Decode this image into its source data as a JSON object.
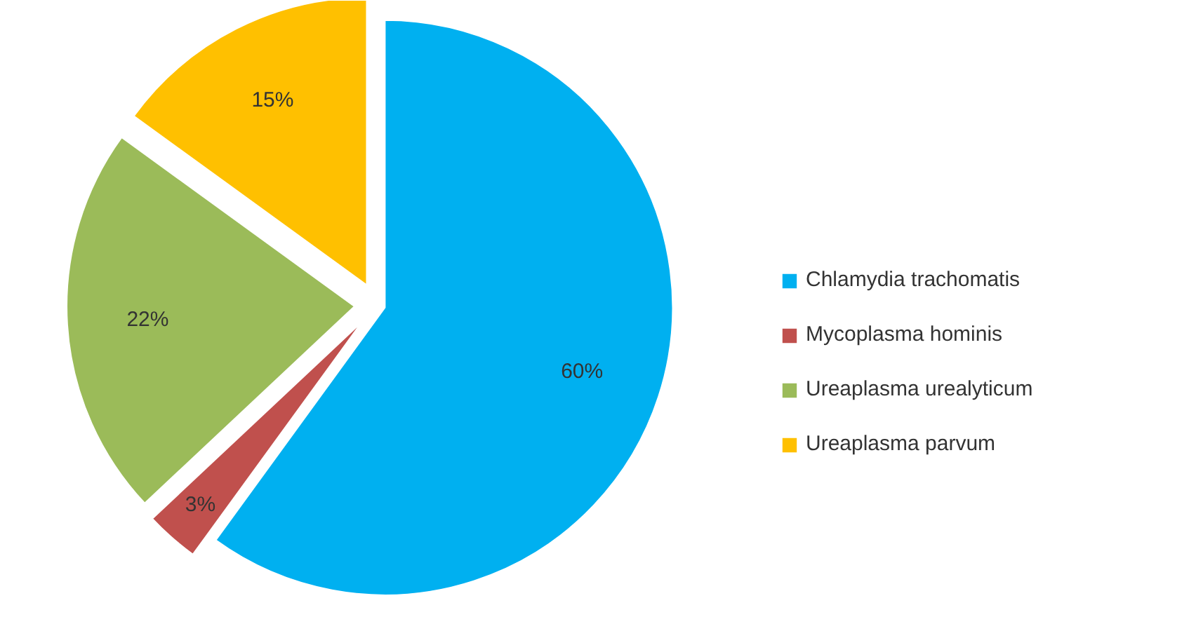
{
  "chart_data": {
    "type": "pie",
    "categories": [
      "Chlamydia trachomatis",
      "Mycoplasma hominis",
      "Ureaplasma urealyticum",
      "Ureaplasma parvum"
    ],
    "values": [
      60,
      3,
      22,
      15
    ],
    "colors": [
      "#00b0f0",
      "#c0504d",
      "#9bbb59",
      "#ffc000"
    ],
    "value_labels": [
      "60%",
      "3%",
      "22%",
      "15%"
    ],
    "legend": "right"
  }
}
